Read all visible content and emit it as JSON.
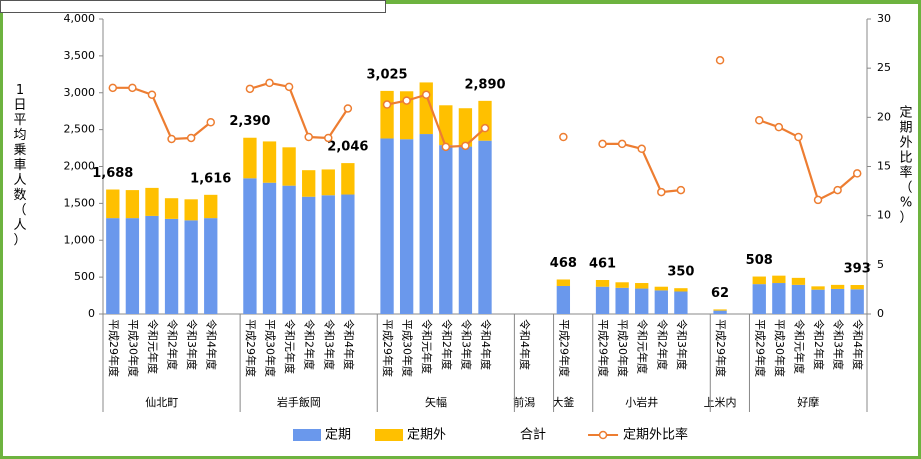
{
  "chart_data": {
    "type": "bar",
    "y_label": "1日平均乗車人数（人）",
    "y2_label": "定期外比率（%）",
    "categories": [
      [
        "仙北町",
        "平成29年度"
      ],
      [
        "仙北町",
        "平成30年度"
      ],
      [
        "仙北町",
        "令和元年度"
      ],
      [
        "仙北町",
        "令和2年度"
      ],
      [
        "仙北町",
        "令和3年度"
      ],
      [
        "仙北町",
        "令和4年度"
      ],
      [
        "岩手飯岡",
        "平成29年度"
      ],
      [
        "岩手飯岡",
        "平成30年度"
      ],
      [
        "岩手飯岡",
        "令和元年度"
      ],
      [
        "岩手飯岡",
        "令和2年度"
      ],
      [
        "岩手飯岡",
        "令和3年度"
      ],
      [
        "岩手飯岡",
        "令和4年度"
      ],
      [
        "矢幅",
        "平成29年度"
      ],
      [
        "矢幅",
        "平成30年度"
      ],
      [
        "矢幅",
        "令和元年度"
      ],
      [
        "矢幅",
        "令和2年度"
      ],
      [
        "矢幅",
        "令和3年度"
      ],
      [
        "矢幅",
        "令和4年度"
      ],
      [
        "前潟",
        "令和4年度"
      ],
      [
        "大釜",
        "平成29年度"
      ],
      [
        "小岩井",
        "平成29年度"
      ],
      [
        "小岩井",
        "平成30年度"
      ],
      [
        "小岩井",
        "令和元年度"
      ],
      [
        "小岩井",
        "令和2年度"
      ],
      [
        "小岩井",
        "令和3年度"
      ],
      [
        "上米内",
        "平成29年度"
      ],
      [
        "好摩",
        "平成29年度"
      ],
      [
        "好摩",
        "平成30年度"
      ],
      [
        "好摩",
        "令和元年度"
      ],
      [
        "好摩",
        "令和2年度"
      ],
      [
        "好摩",
        "令和3年度"
      ],
      [
        "好摩",
        "令和4年度"
      ]
    ],
    "series": [
      {
        "name": "定期",
        "type": "bar",
        "color": "#6a98ec",
        "values": [
          1300,
          1300,
          1330,
          1290,
          1270,
          1300,
          1840,
          1780,
          1740,
          1590,
          1610,
          1620,
          2380,
          2370,
          2440,
          2290,
          2270,
          2350,
          null,
          380,
          370,
          355,
          345,
          320,
          305,
          46,
          405,
          420,
          395,
          330,
          340,
          335
        ]
      },
      {
        "name": "定期外",
        "type": "bar",
        "color": "#ffc000",
        "values": [
          388,
          380,
          380,
          280,
          285,
          316,
          550,
          560,
          520,
          360,
          350,
          426,
          645,
          650,
          700,
          540,
          520,
          540,
          null,
          88,
          91,
          75,
          75,
          50,
          45,
          16,
          103,
          100,
          95,
          45,
          55,
          58
        ]
      },
      {
        "name": "合計",
        "type": "label",
        "values": [
          1688,
          null,
          null,
          null,
          null,
          1616,
          2390,
          null,
          null,
          null,
          null,
          2046,
          3025,
          null,
          null,
          null,
          null,
          2890,
          null,
          468,
          461,
          null,
          null,
          null,
          350,
          62,
          508,
          null,
          null,
          null,
          null,
          393
        ],
        "value_labels": [
          "1,688",
          null,
          null,
          null,
          null,
          "1,616",
          "2,390",
          null,
          null,
          null,
          null,
          "2,046",
          "3,025",
          null,
          null,
          null,
          null,
          "2,890",
          null,
          "468",
          "461",
          null,
          null,
          null,
          "350",
          "62",
          "508",
          null,
          null,
          null,
          null,
          "393"
        ]
      },
      {
        "name": "定期外比率",
        "type": "line",
        "axis": "y2",
        "color": "#ed7d31",
        "values": [
          23,
          23,
          22.3,
          17.8,
          17.9,
          19.5,
          22.9,
          23.5,
          23.1,
          18,
          17.9,
          20.9,
          21.3,
          21.7,
          22.3,
          17,
          17.1,
          18.9,
          null,
          18,
          17.3,
          17.3,
          16.8,
          12.4,
          12.6,
          25.8,
          19.7,
          19,
          18,
          11.6,
          12.6,
          14.3
        ]
      }
    ],
    "ylim": [
      0,
      4000
    ],
    "yticks": [
      0,
      {
        "value": 500,
        "label": "500"
      },
      {
        "value": 1000,
        "label": "1,000"
      },
      {
        "value": 1500,
        "label": "1,500"
      },
      {
        "value": 2000,
        "label": "2,000"
      },
      {
        "value": 2500,
        "label": "2,500"
      },
      {
        "value": 3000,
        "label": "3,000"
      },
      {
        "value": 3500,
        "label": "3,500"
      },
      {
        "value": 4000,
        "label": "4,000"
      }
    ],
    "y2lim": [
      0,
      30
    ],
    "y2ticks": [
      0,
      5,
      10,
      15,
      20,
      25,
      30
    ],
    "grid": false,
    "legend": "bottom"
  }
}
